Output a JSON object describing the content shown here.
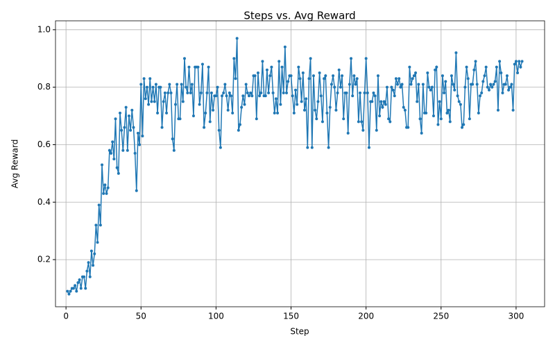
{
  "chart_data": {
    "type": "line",
    "title": "Steps vs. Avg Reward",
    "x_label": "Step",
    "y_label": "Avg Reward",
    "x": [
      1,
      2,
      3,
      4,
      5,
      6,
      7,
      8,
      9,
      10,
      11,
      12,
      13,
      14,
      15,
      16,
      17,
      18,
      19,
      20,
      21,
      22,
      23,
      24,
      25,
      26,
      27,
      28,
      29,
      30,
      31,
      32,
      33,
      34,
      35,
      36,
      37,
      38,
      39,
      40,
      41,
      42,
      43,
      44,
      45,
      46,
      47,
      48,
      49,
      50,
      51,
      52,
      53,
      54,
      55,
      56,
      57,
      58,
      59,
      60,
      61,
      62,
      63,
      64,
      65,
      66,
      67,
      68,
      69,
      70,
      71,
      72,
      73,
      74,
      75,
      76,
      77,
      78,
      79,
      80,
      81,
      82,
      83,
      84,
      85,
      86,
      87,
      88,
      89,
      90,
      91,
      92,
      93,
      94,
      95,
      96,
      97,
      98,
      99,
      100,
      101,
      102,
      103,
      104,
      105,
      106,
      107,
      108,
      109,
      110,
      111,
      112,
      113,
      114,
      115,
      116,
      117,
      118,
      119,
      120,
      121,
      122,
      123,
      124,
      125,
      126,
      127,
      128,
      129,
      130,
      131,
      132,
      133,
      134,
      135,
      136,
      137,
      138,
      139,
      140,
      141,
      142,
      143,
      144,
      145,
      146,
      147,
      148,
      149,
      150,
      151,
      152,
      153,
      154,
      155,
      156,
      157,
      158,
      159,
      160,
      161,
      162,
      163,
      164,
      165,
      166,
      167,
      168,
      169,
      170,
      171,
      172,
      173,
      174,
      175,
      176,
      177,
      178,
      179,
      180,
      181,
      182,
      183,
      184,
      185,
      186,
      187,
      188,
      189,
      190,
      191,
      192,
      193,
      194,
      195,
      196,
      197,
      198,
      199,
      200,
      201,
      202,
      203,
      204,
      205,
      206,
      207,
      208,
      209,
      210,
      211,
      212,
      213,
      214,
      215,
      216,
      217,
      218,
      219,
      220,
      221,
      222,
      223,
      224,
      225,
      226,
      227,
      228,
      229,
      230,
      231,
      232,
      233,
      234,
      235,
      236,
      237,
      238,
      239,
      240,
      241,
      242,
      243,
      244,
      245,
      246,
      247,
      248,
      249,
      250,
      251,
      252,
      253,
      254,
      255,
      256,
      257,
      258,
      259,
      260,
      261,
      262,
      263,
      264,
      265,
      266,
      267,
      268,
      269,
      270,
      271,
      272,
      273,
      274,
      275,
      276,
      277,
      278,
      279,
      280,
      281,
      282,
      283,
      284,
      285,
      286,
      287,
      288,
      289,
      290,
      291,
      292,
      293,
      294,
      295,
      296,
      297,
      298,
      299,
      300,
      301,
      302,
      303,
      304
    ],
    "series": [
      {
        "color": "#1f77b4",
        "values": [
          0.09,
          0.08,
          0.09,
          0.1,
          0.1,
          0.11,
          0.09,
          0.12,
          0.13,
          0.1,
          0.14,
          0.14,
          0.1,
          0.16,
          0.19,
          0.14,
          0.23,
          0.18,
          0.22,
          0.32,
          0.26,
          0.39,
          0.32,
          0.53,
          0.43,
          0.46,
          0.43,
          0.45,
          0.58,
          0.57,
          0.61,
          0.55,
          0.69,
          0.52,
          0.5,
          0.71,
          0.65,
          0.58,
          0.66,
          0.73,
          0.58,
          0.7,
          0.65,
          0.72,
          0.66,
          0.57,
          0.44,
          0.64,
          0.6,
          0.81,
          0.63,
          0.83,
          0.76,
          0.8,
          0.74,
          0.83,
          0.75,
          0.8,
          0.75,
          0.81,
          0.71,
          0.8,
          0.8,
          0.66,
          0.75,
          0.78,
          0.71,
          0.78,
          0.81,
          0.78,
          0.62,
          0.58,
          0.74,
          0.81,
          0.69,
          0.69,
          0.81,
          0.75,
          0.9,
          0.8,
          0.78,
          0.87,
          0.78,
          0.81,
          0.7,
          0.87,
          0.87,
          0.87,
          0.74,
          0.78,
          0.88,
          0.66,
          0.71,
          0.78,
          0.87,
          0.68,
          0.78,
          0.72,
          0.77,
          0.77,
          0.8,
          0.65,
          0.59,
          0.77,
          0.78,
          0.81,
          0.77,
          0.72,
          0.78,
          0.77,
          0.71,
          0.9,
          0.83,
          0.97,
          0.65,
          0.67,
          0.73,
          0.77,
          0.74,
          0.81,
          0.78,
          0.77,
          0.78,
          0.77,
          0.84,
          0.84,
          0.69,
          0.85,
          0.77,
          0.78,
          0.89,
          0.77,
          0.77,
          0.86,
          0.78,
          0.84,
          0.87,
          0.78,
          0.71,
          0.76,
          0.71,
          0.89,
          0.74,
          0.87,
          0.78,
          0.94,
          0.78,
          0.82,
          0.84,
          0.84,
          0.77,
          0.71,
          0.79,
          0.74,
          0.87,
          0.83,
          0.75,
          0.85,
          0.72,
          0.76,
          0.59,
          0.83,
          0.9,
          0.59,
          0.84,
          0.72,
          0.69,
          0.75,
          0.85,
          0.77,
          0.68,
          0.83,
          0.84,
          0.71,
          0.59,
          0.73,
          0.81,
          0.84,
          0.8,
          0.72,
          0.78,
          0.86,
          0.8,
          0.84,
          0.69,
          0.78,
          0.78,
          0.64,
          0.81,
          0.9,
          0.77,
          0.84,
          0.81,
          0.83,
          0.68,
          0.78,
          0.68,
          0.65,
          0.78,
          0.9,
          0.78,
          0.59,
          0.75,
          0.75,
          0.78,
          0.77,
          0.65,
          0.84,
          0.7,
          0.75,
          0.73,
          0.75,
          0.74,
          0.8,
          0.69,
          0.68,
          0.8,
          0.79,
          0.77,
          0.83,
          0.81,
          0.83,
          0.8,
          0.81,
          0.73,
          0.72,
          0.66,
          0.66,
          0.87,
          0.81,
          0.83,
          0.84,
          0.85,
          0.75,
          0.81,
          0.69,
          0.64,
          0.81,
          0.71,
          0.71,
          0.85,
          0.8,
          0.79,
          0.8,
          0.7,
          0.86,
          0.87,
          0.67,
          0.75,
          0.69,
          0.84,
          0.78,
          0.82,
          0.71,
          0.72,
          0.68,
          0.84,
          0.81,
          0.79,
          0.92,
          0.77,
          0.75,
          0.74,
          0.66,
          0.67,
          0.8,
          0.87,
          0.83,
          0.69,
          0.81,
          0.81,
          0.86,
          0.89,
          0.81,
          0.71,
          0.77,
          0.78,
          0.82,
          0.84,
          0.87,
          0.8,
          0.79,
          0.81,
          0.8,
          0.81,
          0.82,
          0.87,
          0.72,
          0.89,
          0.85,
          0.78,
          0.81,
          0.81,
          0.84,
          0.79,
          0.8,
          0.81,
          0.72,
          0.88,
          0.89,
          0.85,
          0.89,
          0.87,
          0.89
        ]
      }
    ],
    "xlim": [
      -7,
      319
    ],
    "ylim": [
      0.036,
      1.031
    ],
    "xticks": [
      0,
      50,
      100,
      150,
      200,
      250,
      300
    ],
    "yticks": [
      0.2,
      0.4,
      0.6,
      0.8,
      {
        "value": 1,
        "label": "1.0"
      }
    ],
    "grid": true
  }
}
